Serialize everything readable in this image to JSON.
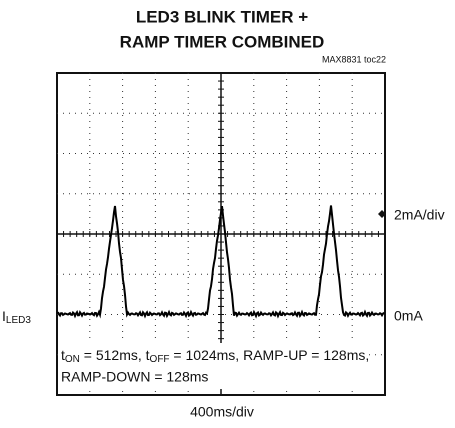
{
  "title": [
    "LED3 BLINK TIMER +",
    "RAMP TIMER COMBINED"
  ],
  "figure_id": "MAX8831 toc22",
  "y_scale": "2mA/div",
  "zero_label": "0mA",
  "trace_label": {
    "main": "I",
    "sub": "LED3"
  },
  "caption": {
    "line1": [
      "t",
      "ON",
      " = 512ms, t",
      "OFF",
      " = 1024ms, RAMP-UP = 128ms,"
    ],
    "line2": "RAMP-DOWN = 128ms"
  },
  "x_scale": "400ms/div"
}
